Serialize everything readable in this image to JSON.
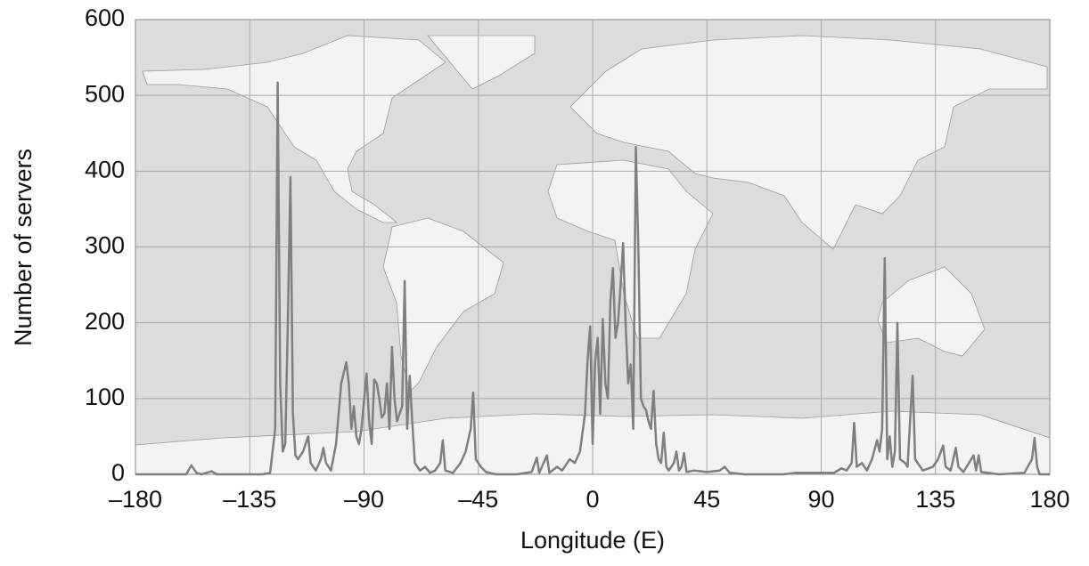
{
  "chart_data": {
    "type": "line",
    "x_label": "Longitude (E)",
    "y_label": "Number of servers",
    "xlim": [
      -180,
      180
    ],
    "xticks": [
      {
        "value": -180,
        "label": "–180"
      },
      {
        "value": -135,
        "label": "–135"
      },
      {
        "value": -90,
        "label": "–90"
      },
      {
        "value": -45,
        "label": "–45"
      },
      0,
      45,
      90,
      135,
      180
    ],
    "ylim": [
      0,
      600
    ],
    "yticks": [
      0,
      100,
      200,
      300,
      400,
      500,
      600
    ],
    "grid": true,
    "x": [
      -180,
      -160,
      -158,
      -156,
      -154,
      -150,
      -148,
      -130,
      -127,
      -125,
      -124,
      -123,
      -122,
      -121,
      -120,
      -119,
      -118,
      -117,
      -116,
      -114,
      -112,
      -111,
      -109,
      -107,
      -106,
      -105,
      -103,
      -101,
      -99,
      -97,
      -96,
      -95,
      -94,
      -93,
      -92,
      -91,
      -89,
      -88,
      -87,
      -86,
      -85,
      -84,
      -83,
      -82,
      -81,
      -80,
      -79,
      -78,
      -77,
      -76,
      -75,
      -74,
      -73,
      -72,
      -71,
      -70,
      -68,
      -66,
      -64,
      -62,
      -60,
      -59,
      -58,
      -55,
      -52,
      -50,
      -48,
      -47,
      -46,
      -44,
      -42,
      -38,
      -30,
      -24,
      -22,
      -21,
      -18,
      -17,
      -14,
      -12,
      -9,
      -7,
      -5,
      -3,
      -2,
      -1,
      0,
      1,
      2,
      3,
      4,
      5,
      6,
      7,
      8,
      9,
      10,
      11,
      12,
      13,
      14,
      15,
      16,
      17,
      18,
      19,
      20,
      21,
      22,
      23,
      24,
      25,
      26,
      27,
      28,
      29,
      30,
      32,
      33,
      34,
      35,
      36,
      37,
      40,
      45,
      50,
      52,
      54,
      60,
      75,
      80,
      95,
      98,
      100,
      102,
      103,
      104,
      106,
      108,
      110,
      112,
      113,
      114,
      115,
      116,
      117,
      118,
      119,
      120,
      121,
      123,
      124,
      126,
      127,
      130,
      134,
      136,
      138,
      139,
      141,
      143,
      144,
      146,
      150,
      151,
      152,
      153,
      160,
      170,
      173,
      174,
      175,
      176,
      180
    ],
    "series": [
      {
        "name": "Servers",
        "color": "#7f7f7f",
        "values": [
          0,
          0,
          12,
          2,
          0,
          4,
          0,
          0,
          2,
          60,
          517,
          120,
          30,
          40,
          200,
          392,
          80,
          25,
          20,
          30,
          50,
          15,
          5,
          20,
          35,
          15,
          5,
          40,
          120,
          148,
          120,
          60,
          90,
          50,
          40,
          60,
          133,
          70,
          40,
          125,
          120,
          100,
          75,
          80,
          120,
          60,
          168,
          100,
          70,
          80,
          90,
          255,
          60,
          130,
          70,
          15,
          5,
          10,
          2,
          5,
          15,
          45,
          5,
          2,
          15,
          30,
          60,
          108,
          20,
          10,
          3,
          0,
          0,
          3,
          22,
          2,
          25,
          2,
          10,
          5,
          20,
          15,
          30,
          80,
          150,
          195,
          40,
          150,
          180,
          80,
          205,
          120,
          100,
          230,
          272,
          180,
          200,
          250,
          305,
          200,
          120,
          145,
          60,
          432,
          300,
          100,
          90,
          85,
          70,
          60,
          110,
          40,
          20,
          15,
          55,
          10,
          5,
          15,
          30,
          5,
          10,
          28,
          3,
          5,
          3,
          5,
          10,
          2,
          0,
          0,
          2,
          2,
          8,
          5,
          15,
          68,
          10,
          15,
          5,
          20,
          45,
          30,
          60,
          285,
          20,
          50,
          10,
          30,
          200,
          20,
          15,
          10,
          130,
          20,
          5,
          10,
          20,
          38,
          10,
          5,
          35,
          10,
          3,
          25,
          5,
          25,
          3,
          0,
          2,
          20,
          48,
          10,
          0,
          0
        ]
      }
    ]
  }
}
